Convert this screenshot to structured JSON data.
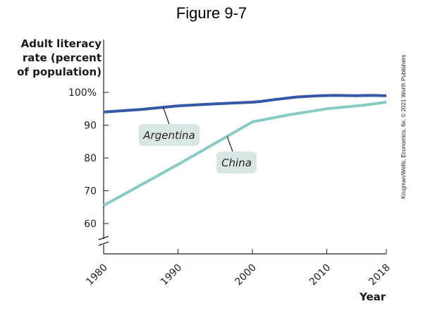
{
  "figure_title": "Figure 9-7",
  "credit": "Krugman/Wells, Economics, 6e, © 2021 Worth Publishers",
  "chart_data": {
    "type": "line",
    "ylabel": "Adult literacy rate (percent of population)",
    "xlabel": "Year",
    "ylim": [
      55,
      100
    ],
    "xlim": [
      1980,
      2018
    ],
    "axis_break": true,
    "grid": false,
    "yticks": [
      60,
      70,
      80,
      90,
      100
    ],
    "ytick_labels": [
      "60",
      "70",
      "80",
      "90",
      "100%"
    ],
    "xticks": [
      1980,
      1990,
      2000,
      2010,
      2018
    ],
    "xtick_labels": [
      "1980",
      "1990",
      "2000",
      "2010",
      "2018"
    ],
    "series": [
      {
        "name": "Argentina",
        "color": "#3656a8",
        "x": [
          1980,
          1985,
          1990,
          1995,
          2000,
          2001,
          2003,
          2006,
          2009,
          2011,
          2014,
          2016,
          2018
        ],
        "y": [
          94.0,
          94.8,
          95.9,
          96.5,
          97.0,
          97.2,
          97.8,
          98.6,
          99.0,
          99.1,
          99.0,
          99.1,
          99.0
        ]
      },
      {
        "name": "China",
        "color": "#86ccc4",
        "x": [
          1980,
          1990,
          2000,
          2005,
          2010,
          2015,
          2018
        ],
        "y": [
          65.5,
          78.0,
          91.0,
          93.2,
          95.0,
          96.1,
          97.0
        ]
      }
    ]
  }
}
